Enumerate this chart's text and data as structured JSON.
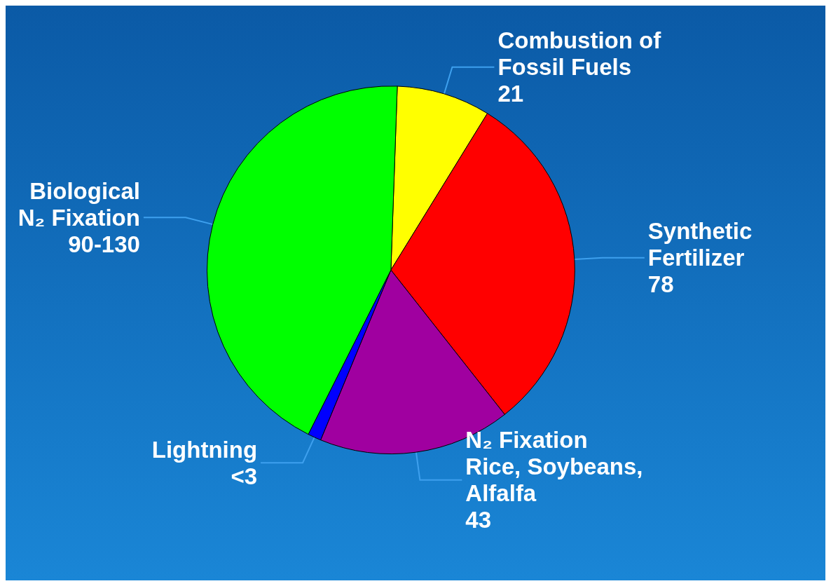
{
  "chart_data": {
    "type": "pie",
    "categories": [
      "Combustion of\nFossil Fuels",
      "Synthetic\nFertilizer",
      "N₂ Fixation\nRice, Soybeans,\nAlfalfa",
      "Lightning",
      "Biological\nN₂ Fixation"
    ],
    "values": [
      21,
      78,
      43,
      3,
      110
    ],
    "value_labels": [
      "21",
      "78",
      "43",
      "<3",
      "90-130"
    ],
    "colors": [
      "#ffff00",
      "#ff0000",
      "#a000a0",
      "#0000ff",
      "#00ff00"
    ]
  }
}
